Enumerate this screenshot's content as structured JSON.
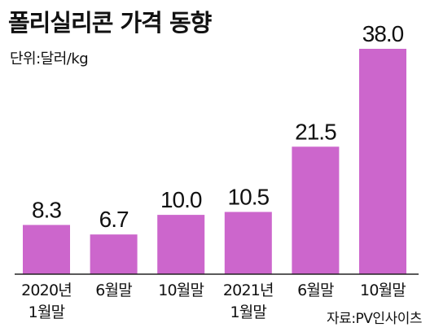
{
  "header": {
    "title": "폴리실리콘 가격 동향",
    "unit": "단위:달러/kg"
  },
  "footer": {
    "source": "자료:PV인사이츠"
  },
  "colors": {
    "bar": "#cc66cc",
    "axis": "#222222",
    "text": "#111111"
  },
  "chart_data": {
    "type": "bar",
    "title": "폴리실리콘 가격 동향",
    "unit": "단위:달러/kg",
    "categories": [
      [
        "2020년",
        "1월말"
      ],
      [
        "6월말"
      ],
      [
        "10월말"
      ],
      [
        "2021년",
        "1월말"
      ],
      [
        "6월말"
      ],
      [
        "10월말"
      ]
    ],
    "values": [
      8.3,
      6.7,
      10.0,
      10.5,
      21.5,
      38.0
    ],
    "value_labels": [
      "8.3",
      "6.7",
      "10.0",
      "10.5",
      "21.5",
      "38.0"
    ],
    "ylim": [
      0,
      38.0
    ],
    "grid": false,
    "legend": "none"
  }
}
